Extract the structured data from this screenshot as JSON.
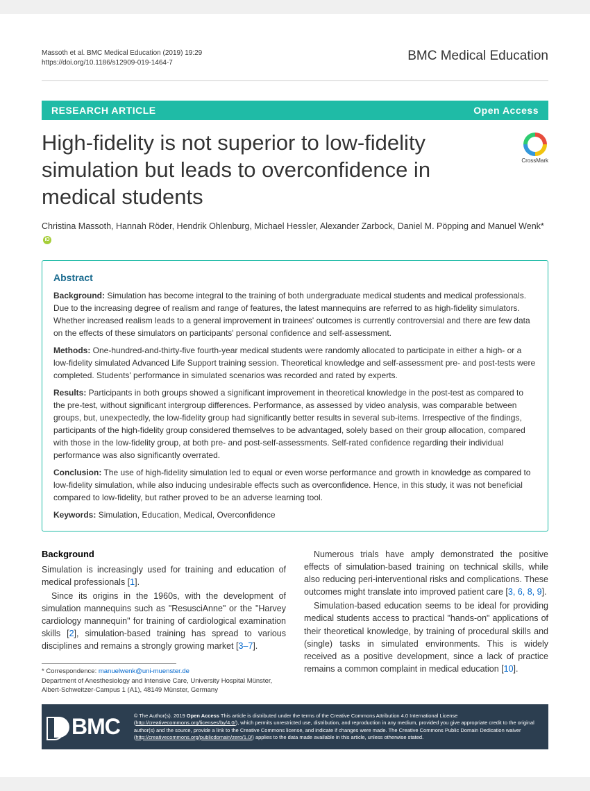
{
  "meta": {
    "citation": "Massoth et al. BMC Medical Education        (2019) 19:29",
    "doi": "https://doi.org/10.1186/s12909-019-1464-7",
    "journal": "BMC Medical Education"
  },
  "banner": {
    "type": "RESEARCH ARTICLE",
    "access": "Open Access"
  },
  "title": "High-fidelity is not superior to low-fidelity simulation but leads to overconfidence in medical students",
  "crossmark": "CrossMark",
  "authors": "Christina Massoth, Hannah Röder, Hendrik Ohlenburg, Michael Hessler, Alexander Zarbock, Daniel M. Pöpping and Manuel Wenk*",
  "abstract": {
    "heading": "Abstract",
    "background_label": "Background:",
    "background": " Simulation has become integral to the training of both undergraduate medical students and medical professionals. Due to the increasing degree of realism and range of features, the latest mannequins are referred to as high-fidelity simulators. Whether increased realism leads to a general improvement in trainees' outcomes is currently controversial and there are few data on the effects of these simulators on participants' personal confidence and self-assessment.",
    "methods_label": "Methods:",
    "methods": " One-hundred-and-thirty-five fourth-year medical students were randomly allocated to participate in either a high- or a low-fidelity simulated Advanced Life Support training session. Theoretical knowledge and self-assessment pre- and post-tests were completed. Students' performance in simulated scenarios was recorded and rated by experts.",
    "results_label": "Results:",
    "results": " Participants in both groups showed a significant improvement in theoretical knowledge in the post-test as compared to the pre-test, without significant intergroup differences. Performance, as assessed by video analysis, was comparable between groups, but, unexpectedly, the low-fidelity group had significantly better results in several sub-items. Irrespective of the findings, participants of the high-fidelity group considered themselves to be advantaged, solely based on their group allocation, compared with those in the low-fidelity group, at both pre- and post-self-assessments. Self-rated confidence regarding their individual performance was also significantly overrated.",
    "conclusion_label": "Conclusion:",
    "conclusion": " The use of high-fidelity simulation led to equal or even worse performance and growth in knowledge as compared to low-fidelity simulation, while also inducing undesirable effects such as overconfidence. Hence, in this study, it was not beneficial compared to low-fidelity, but rather proved to be an adverse learning tool.",
    "keywords_label": "Keywords:",
    "keywords": " Simulation, Education, Medical, Overconfidence"
  },
  "body": {
    "heading": "Background",
    "left_p1a": "Simulation is increasingly used for training and education of medical professionals [",
    "left_p1_ref": "1",
    "left_p1b": "].",
    "left_p2a": "Since its origins in the 1960s, with the development of simulation mannequins such as \"ResusciAnne\" or the \"Harvey cardiology mannequin\" for training of cardiological examination skills [",
    "left_p2_ref": "2",
    "left_p2b": "], simulation-based training has spread to various disciplines and remains a strongly growing market [",
    "left_p2_ref2": "3–7",
    "left_p2c": "].",
    "right_p1a": "Numerous trials have amply demonstrated the positive effects of simulation-based training on technical skills, while also reducing peri-interventional risks and complications. These outcomes might translate into improved patient care [",
    "right_p1_ref": "3, 6, 8, 9",
    "right_p1b": "].",
    "right_p2a": "Simulation-based education seems to be ideal for providing medical students access to practical \"hands-on\" applications of their theoretical knowledge, by training of procedural skills and (single) tasks in simulated environments. This is widely received as a positive development, since a lack of practice remains a common complaint in medical education [",
    "right_p2_ref": "10",
    "right_p2b": "]."
  },
  "correspondence": {
    "label": "* Correspondence: ",
    "email": "manuelwenk@uni-muenster.de",
    "affiliation": "Department of Anesthesiology and Intensive Care, University Hospital Münster, Albert-Schweitzer-Campus 1 (A1), 48149 Münster, Germany"
  },
  "footer": {
    "logo": "BMC",
    "license_a": "© The Author(s). 2019 ",
    "license_b": "Open Access",
    "license_c": " This article is distributed under the terms of the Creative Commons Attribution 4.0 International License (",
    "license_url1": "http://creativecommons.org/licenses/by/4.0/",
    "license_d": "), which permits unrestricted use, distribution, and reproduction in any medium, provided you give appropriate credit to the original author(s) and the source, provide a link to the Creative Commons license, and indicate if changes were made. The Creative Commons Public Domain Dedication waiver (",
    "license_url2": "http://creativecommons.org/publicdomain/zero/1.0/",
    "license_e": ") applies to the data made available in this article, unless otherwise stated."
  },
  "colors": {
    "accent": "#1fbba6",
    "heading": "#1a6b8f",
    "link": "#0066cc",
    "footer_bg": "#2c3e50"
  }
}
